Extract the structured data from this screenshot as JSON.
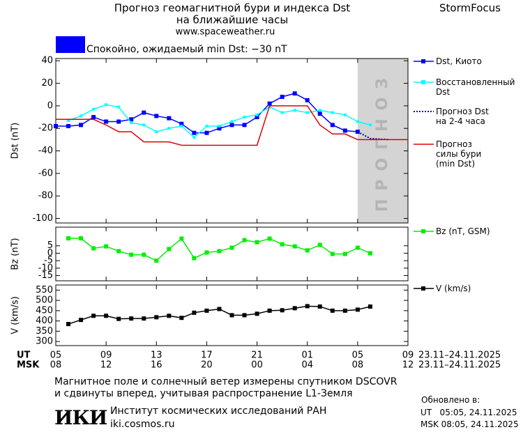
{
  "header": {
    "title": "Прогноз геомагнитной бури и индекса Dst",
    "subtitle": "на ближайшие часы",
    "url": "www.spaceweather.ru",
    "brand": "StormFocus"
  },
  "status": {
    "color": "#0000ff",
    "text": "Спокойно, ожидаемый min Dst: −30 nT"
  },
  "x_axis": {
    "xlim": [
      0,
      28
    ],
    "xticks": [
      {
        "value": 0,
        "label": "05"
      },
      {
        "value": 4,
        "label": "09"
      },
      {
        "value": 8,
        "label": "13"
      },
      {
        "value": 12,
        "label": "17"
      },
      {
        "value": 16,
        "label": "21"
      },
      {
        "value": 20,
        "label": "01"
      },
      {
        "value": 24,
        "label": "05"
      },
      {
        "value": 28,
        "label": "09"
      }
    ],
    "msk_ticks": [
      {
        "value": 0,
        "label": "08"
      },
      {
        "value": 4,
        "label": "12"
      },
      {
        "value": 8,
        "label": "16"
      },
      {
        "value": 12,
        "label": "20"
      },
      {
        "value": 16,
        "label": "00"
      },
      {
        "value": 20,
        "label": "04"
      },
      {
        "value": 24,
        "label": "08"
      },
      {
        "value": 28,
        "label": "12"
      }
    ],
    "ut_label": "UT",
    "msk_label": "MSK",
    "ut_range": "23.11–24.11.2025",
    "msk_range": "23.11–24.11.2025"
  },
  "forecast_region": {
    "x": [
      24,
      28
    ],
    "label": "ПРОГНОЗ",
    "color": "#d4d4d4"
  },
  "chart_data": [
    {
      "type": "line",
      "ylabel": "Dst (nT)",
      "ylim": [
        -104,
        42
      ],
      "yticks": [
        40,
        20,
        0,
        -20,
        -40,
        -60,
        -80,
        -100
      ],
      "series": [
        {
          "name": "Dst, Киото",
          "color": "#0000ff",
          "marker": "square",
          "x": [
            0,
            1,
            2,
            3,
            4,
            5,
            6,
            7,
            8,
            9,
            10,
            11,
            12,
            13,
            14,
            15,
            16,
            17,
            18,
            19,
            20,
            21,
            22,
            23,
            24
          ],
          "values": [
            -18,
            -18,
            -17,
            -10,
            -14,
            -14,
            -12,
            -6,
            -9,
            -11,
            -16,
            -24,
            -24,
            -20,
            -17,
            -17,
            -10,
            2,
            8,
            11,
            5,
            -7,
            -17,
            -22,
            -23
          ]
        },
        {
          "name": "Восстановленный\nDst",
          "color": "#00ffff",
          "marker": "small-square",
          "x": [
            1,
            2,
            3,
            4,
            5,
            6,
            7,
            8,
            9,
            10,
            11,
            12,
            13,
            14,
            15,
            16,
            17,
            18,
            19,
            20,
            21,
            22,
            23,
            24,
            25
          ],
          "values": [
            -13,
            -9,
            -3,
            1,
            -1,
            -15,
            -17,
            -23,
            -20,
            -18,
            -28,
            -18,
            -18,
            -14,
            -10,
            -8,
            -1,
            -6,
            -4,
            -6,
            -4,
            -6,
            -8,
            -14,
            -17
          ]
        },
        {
          "name": "Прогноз Dst\nна 2-4 часа",
          "color": "#0000aa",
          "dash": "dotted",
          "x": [
            24,
            25,
            26.5
          ],
          "values": [
            -23,
            -29,
            -30
          ]
        },
        {
          "name": "Прогноз\nсилы бури\n(min Dst)",
          "color": "#dd0000",
          "x": [
            0,
            3,
            4,
            5,
            6,
            7,
            9,
            10,
            16,
            17,
            20,
            21,
            22,
            23,
            24,
            28
          ],
          "values": [
            -12,
            -12,
            -17,
            -23,
            -23,
            -32,
            -32,
            -35,
            -35,
            0,
            0,
            -17,
            -25,
            -25,
            -30,
            -30
          ]
        }
      ]
    },
    {
      "type": "line",
      "ylabel": "Bz (nT)",
      "ylim": [
        -18.5,
        17.5
      ],
      "yticks": [
        5,
        0,
        -5,
        -10,
        -15
      ],
      "series": [
        {
          "name": "Bz (nT, GSM)",
          "color": "#00ee00",
          "marker": "square",
          "x": [
            1,
            2,
            3,
            4,
            5,
            6,
            7,
            8,
            9,
            10,
            11,
            12,
            13,
            14,
            15,
            16,
            17,
            18,
            19,
            20,
            21,
            22,
            23,
            24,
            25
          ],
          "values": [
            10,
            10,
            3.3,
            4.6,
            1.4,
            -1,
            -1,
            -5,
            2.8,
            9.8,
            -3.3,
            0.5,
            1.4,
            3.7,
            8.8,
            7.4,
            9.8,
            6,
            4.6,
            1.9,
            5.6,
            -0.5,
            -0.5,
            3.7,
            0
          ]
        }
      ]
    },
    {
      "type": "line",
      "ylabel": "V (km/s)",
      "ylim": [
        280,
        575
      ],
      "yticks": [
        300,
        350,
        400,
        450,
        500,
        550
      ],
      "series": [
        {
          "name": "V (km/s)",
          "color": "#000000",
          "marker": "square",
          "x": [
            1,
            2,
            3,
            4,
            5,
            6,
            7,
            8,
            9,
            10,
            11,
            12,
            13,
            14,
            15,
            16,
            17,
            18,
            19,
            20,
            21,
            22,
            23,
            24,
            25
          ],
          "values": [
            385,
            405,
            425,
            425,
            410,
            412,
            412,
            418,
            425,
            415,
            440,
            450,
            458,
            428,
            428,
            435,
            450,
            452,
            462,
            472,
            470,
            450,
            450,
            455,
            470
          ]
        }
      ]
    }
  ],
  "footer": {
    "note1": "Магнитное поле и солнечный ветер измерены спутником DSCOVR",
    "note2": "и сдвинуты вперед, учитывая распространение L1-Земля",
    "updated": "Обновлено в:",
    "updated_ut": "UT   05:05, 24.11.2025",
    "updated_msk": "MSK 08:05, 24.11.2025",
    "logo": "ИКИ",
    "institute": "Институт космических исследований РАН",
    "site": "iki.cosmos.ru"
  }
}
